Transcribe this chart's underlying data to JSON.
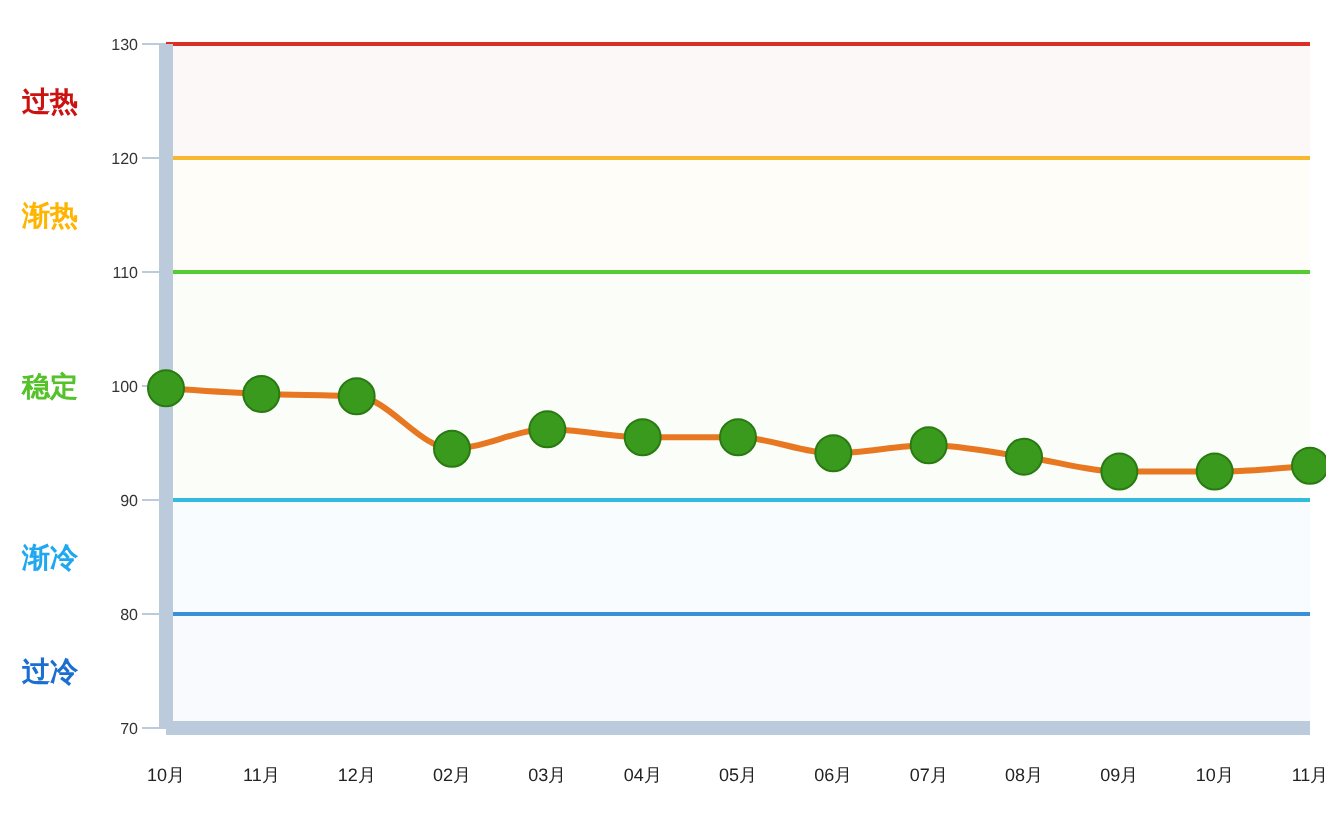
{
  "chart_data": {
    "type": "line",
    "categories": [
      "10月",
      "11月",
      "12月",
      "02月",
      "03月",
      "04月",
      "05月",
      "06月",
      "07月",
      "08月",
      "09月",
      "10月",
      "11月"
    ],
    "series": [
      {
        "color": "#e87722",
        "values": [
          99.8,
          99.3,
          99.1,
          94.5,
          96.2,
          95.5,
          95.5,
          94.1,
          94.8,
          93.8,
          92.5,
          92.5,
          93.0
        ]
      }
    ],
    "marker": "circle",
    "line_style": "solid",
    "grid": false,
    "legend": false,
    "ylim": [
      70,
      130
    ],
    "yticks": [
      70,
      80,
      90,
      100,
      110,
      120,
      130
    ],
    "ref_lines": [
      {
        "axis": "y",
        "value": 130,
        "color": "#d93025"
      },
      {
        "axis": "y",
        "value": 120,
        "color": "#f7b731"
      },
      {
        "axis": "y",
        "value": 110,
        "color": "#55cc33"
      },
      {
        "axis": "y",
        "value": 90,
        "color": "#33bbdd"
      },
      {
        "axis": "y",
        "value": 80,
        "color": "#3b8fd9"
      }
    ],
    "bands": [
      {
        "axis": "y",
        "from": 120,
        "to": 130,
        "label": "过热",
        "color": "#cc1111"
      },
      {
        "axis": "y",
        "from": 110,
        "to": 120,
        "label": "渐热",
        "color": "#ffb400"
      },
      {
        "axis": "y",
        "from": 90,
        "to": 110,
        "label": "稳定",
        "color": "#55c22a"
      },
      {
        "axis": "y",
        "from": 80,
        "to": 90,
        "label": "渐冷",
        "color": "#1fa8f0"
      },
      {
        "axis": "y",
        "from": 70,
        "to": 80,
        "label": "过冷",
        "color": "#1a6fd0"
      }
    ]
  }
}
